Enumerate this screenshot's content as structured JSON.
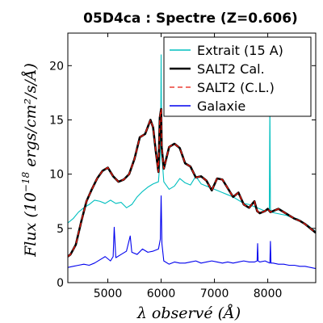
{
  "chart_data": {
    "type": "line",
    "title": "05D4ca : Spectre (Z=0.606)",
    "xlabel": "λ observé (Å)",
    "ylabel": "Flux (10^-18 ergs/cm²/s/Å)",
    "ylabel_parts": {
      "prefix": "Flux (10",
      "exponent": "−18",
      "suffix": " ergs/cm²/s/Å)"
    },
    "xlim": [
      4250,
      8900
    ],
    "ylim": [
      0,
      23
    ],
    "xticks": [
      5000,
      6000,
      7000,
      8000
    ],
    "yticks": [
      0,
      5,
      10,
      15,
      20
    ],
    "xtick_labels": [
      "5000",
      "6000",
      "7000",
      "8000"
    ],
    "ytick_labels": [
      "0",
      "5",
      "10",
      "15",
      "20"
    ],
    "grid": false,
    "legend_position": "top-right",
    "series": [
      {
        "name": "Extrait (15 A)",
        "color": "#00bfbf",
        "style": "solid",
        "x": [
          4250,
          4350,
          4450,
          4550,
          4650,
          4750,
          4850,
          4950,
          5050,
          5150,
          5250,
          5350,
          5450,
          5550,
          5650,
          5750,
          5850,
          5950,
          5990,
          6000,
          6010,
          6050,
          6150,
          6250,
          6350,
          6450,
          6550,
          6650,
          6750,
          6850,
          6950,
          7050,
          7150,
          7250,
          7350,
          7450,
          7550,
          7650,
          7750,
          7850,
          7950,
          8030,
          8040,
          8050,
          8070,
          8150,
          8250,
          8350,
          8450,
          8550,
          8650,
          8750,
          8850,
          8900
        ],
        "y": [
          5.5,
          5.9,
          6.5,
          6.9,
          7.2,
          7.6,
          7.5,
          7.3,
          7.6,
          7.3,
          7.4,
          6.9,
          7.2,
          7.9,
          8.4,
          8.8,
          9.1,
          9.3,
          12.0,
          21.0,
          12.0,
          9.3,
          8.6,
          8.9,
          9.6,
          9.2,
          9.0,
          9.8,
          9.1,
          8.9,
          8.7,
          8.5,
          8.3,
          8.1,
          7.9,
          7.6,
          7.3,
          7.2,
          7.0,
          6.8,
          6.6,
          6.8,
          16.5,
          6.8,
          6.5,
          6.4,
          6.3,
          6.2,
          6.0,
          5.9,
          5.6,
          5.3,
          4.9,
          4.7
        ]
      },
      {
        "name": "SALT2 Cal.",
        "color": "#000000",
        "style": "solid",
        "x": [
          4250,
          4300,
          4400,
          4500,
          4600,
          4700,
          4800,
          4900,
          5000,
          5100,
          5200,
          5300,
          5400,
          5500,
          5600,
          5700,
          5800,
          5850,
          5900,
          5950,
          5975,
          6000,
          6010,
          6050,
          6150,
          6250,
          6350,
          6450,
          6550,
          6650,
          6750,
          6850,
          6950,
          7050,
          7150,
          7250,
          7350,
          7450,
          7550,
          7650,
          7750,
          7800,
          7850,
          7950,
          8000,
          8050,
          8100,
          8200,
          8300,
          8400,
          8500,
          8600,
          8700,
          8800,
          8900
        ],
        "y": [
          2.4,
          2.6,
          3.5,
          5.6,
          7.5,
          8.6,
          9.6,
          10.3,
          10.6,
          9.8,
          9.3,
          9.5,
          10.0,
          11.4,
          13.4,
          13.7,
          15.0,
          14.3,
          12.1,
          10.2,
          15.2,
          16.0,
          12.5,
          10.5,
          12.5,
          12.8,
          12.4,
          11.0,
          10.7,
          9.7,
          9.8,
          9.4,
          8.5,
          9.6,
          9.5,
          8.7,
          7.9,
          8.3,
          7.2,
          6.9,
          7.5,
          6.6,
          6.4,
          6.6,
          6.8,
          6.5,
          6.6,
          6.8,
          6.5,
          6.2,
          5.9,
          5.7,
          5.4,
          5.0,
          4.6
        ]
      },
      {
        "name": "SALT2 (C.L.)",
        "color": "#e8190e",
        "style": "dashed",
        "x": [
          4250,
          4300,
          4400,
          4500,
          4600,
          4700,
          4800,
          4900,
          5000,
          5100,
          5200,
          5300,
          5400,
          5500,
          5600,
          5700,
          5800,
          5850,
          5900,
          5950,
          5975,
          6000,
          6010,
          6050,
          6150,
          6250,
          6350,
          6450,
          6550,
          6650,
          6750,
          6850,
          6950,
          7050,
          7150,
          7250,
          7350,
          7450,
          7550,
          7650,
          7750,
          7800,
          7850,
          7950,
          8000,
          8050,
          8100,
          8200,
          8300,
          8400,
          8500,
          8600,
          8700,
          8800,
          8900
        ],
        "y": [
          2.4,
          2.6,
          3.5,
          5.6,
          7.5,
          8.6,
          9.6,
          10.3,
          10.6,
          9.8,
          9.3,
          9.5,
          10.0,
          11.4,
          13.4,
          13.7,
          15.0,
          14.3,
          12.1,
          10.2,
          15.2,
          16.0,
          12.5,
          10.5,
          12.5,
          12.8,
          12.4,
          11.0,
          10.7,
          9.7,
          9.8,
          9.4,
          8.5,
          9.6,
          9.5,
          8.7,
          7.9,
          8.3,
          7.2,
          6.9,
          7.5,
          6.6,
          6.4,
          6.6,
          6.8,
          6.5,
          6.6,
          6.8,
          6.5,
          6.2,
          5.9,
          5.7,
          5.4,
          5.0,
          4.6
        ]
      },
      {
        "name": "Galaxie",
        "color": "#0000ee",
        "style": "solid",
        "x": [
          4250,
          4350,
          4450,
          4550,
          4650,
          4750,
          4850,
          4950,
          5050,
          5100,
          5120,
          5150,
          5250,
          5350,
          5420,
          5450,
          5550,
          5650,
          5750,
          5850,
          5950,
          5985,
          6000,
          6015,
          6050,
          6150,
          6250,
          6350,
          6450,
          6550,
          6650,
          6750,
          6850,
          6950,
          7050,
          7150,
          7250,
          7350,
          7450,
          7550,
          7650,
          7750,
          7800,
          7810,
          7820,
          7850,
          7950,
          8040,
          8050,
          8060,
          8100,
          8200,
          8300,
          8400,
          8500,
          8600,
          8700,
          8800,
          8900
        ],
        "y": [
          1.4,
          1.5,
          1.6,
          1.7,
          1.6,
          1.8,
          2.1,
          2.4,
          2.0,
          2.4,
          5.1,
          2.3,
          2.6,
          2.9,
          4.3,
          2.8,
          2.6,
          3.1,
          2.8,
          2.9,
          3.1,
          4.0,
          8.0,
          3.6,
          2.0,
          1.7,
          1.9,
          1.8,
          1.8,
          1.9,
          2.0,
          1.8,
          1.9,
          2.0,
          1.9,
          1.8,
          1.9,
          1.8,
          1.9,
          2.0,
          1.9,
          1.9,
          2.0,
          3.6,
          2.0,
          1.9,
          2.0,
          1.8,
          3.8,
          1.8,
          1.8,
          1.7,
          1.7,
          1.6,
          1.6,
          1.5,
          1.5,
          1.4,
          1.3
        ]
      }
    ]
  }
}
